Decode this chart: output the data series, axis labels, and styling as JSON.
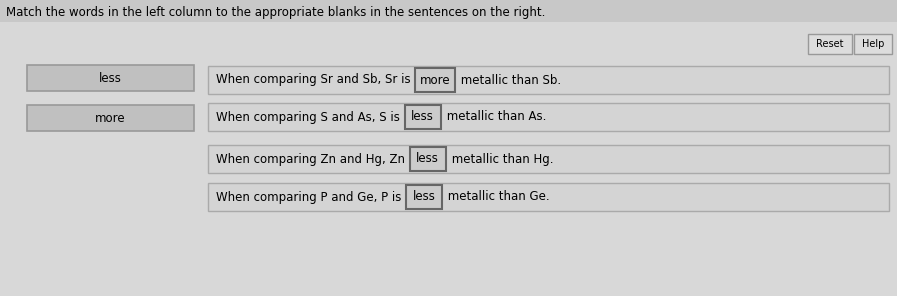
{
  "title": "Match the words in the left column to the appropriate blanks in the sentences on the right.",
  "background_color": "#c8c8c8",
  "inner_bg_color": "#d8d8d8",
  "left_words": [
    "less",
    "more"
  ],
  "left_box_facecolor": "#c0c0c0",
  "left_box_edgecolor": "#999999",
  "sentences": [
    {
      "pre": "When comparing Sr and Sb, Sr is ",
      "blank": "more",
      "post": " metallic than Sb."
    },
    {
      "pre": "When comparing S and As, S is ",
      "blank": "less",
      "post": " metallic than As."
    },
    {
      "pre": "When comparing Zn and Hg, Zn ",
      "blank": "less",
      "post": " metallic than Hg."
    },
    {
      "pre": "When comparing P and Ge, P is ",
      "blank": "less",
      "post": " metallic than Ge."
    }
  ],
  "sentence_box_facecolor": "#d4d4d4",
  "sentence_box_edgecolor": "#aaaaaa",
  "blank_box_facecolor": "#cccccc",
  "blank_box_edgecolor": "#666666",
  "button_labels": [
    "Reset",
    "Help"
  ],
  "button_facecolor": "#dddddd",
  "button_edgecolor": "#999999",
  "font_size": 8.5,
  "title_font_size": 8.5,
  "fig_width": 8.97,
  "fig_height": 2.96,
  "dpi": 100
}
